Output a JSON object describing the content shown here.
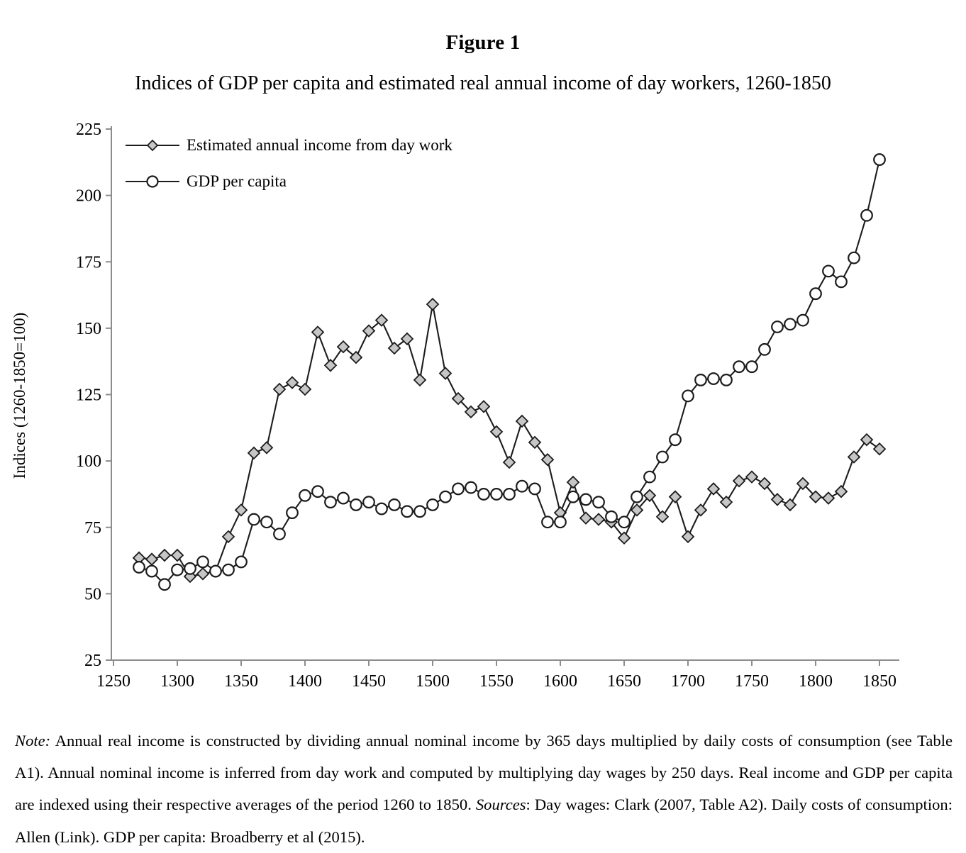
{
  "figure": {
    "title": "Figure 1",
    "subtitle": "Indices of GDP per capita and estimated real annual income of day workers, 1260-1850"
  },
  "chart_data": {
    "type": "line",
    "title": "Indices of GDP per capita and estimated real annual income of day workers, 1260-1850",
    "xlabel": "",
    "ylabel": "Indices (1260-1850=100)",
    "xlim": [
      1250,
      1867
    ],
    "ylim": [
      25,
      225
    ],
    "x_ticks": [
      1250,
      1300,
      1350,
      1400,
      1450,
      1500,
      1550,
      1600,
      1650,
      1700,
      1750,
      1800,
      1850
    ],
    "y_ticks": [
      25,
      50,
      75,
      100,
      125,
      150,
      175,
      200,
      225
    ],
    "grid": false,
    "legend_position": "top-left",
    "x": [
      1270,
      1280,
      1290,
      1300,
      1310,
      1320,
      1330,
      1340,
      1350,
      1360,
      1370,
      1380,
      1390,
      1400,
      1410,
      1420,
      1430,
      1440,
      1450,
      1460,
      1470,
      1480,
      1490,
      1500,
      1510,
      1520,
      1530,
      1540,
      1550,
      1560,
      1570,
      1580,
      1590,
      1600,
      1610,
      1620,
      1630,
      1640,
      1650,
      1660,
      1670,
      1680,
      1690,
      1700,
      1710,
      1720,
      1730,
      1740,
      1750,
      1760,
      1770,
      1780,
      1790,
      1800,
      1810,
      1820,
      1830,
      1840,
      1850
    ],
    "series": [
      {
        "name": "Estimated annual income from day work",
        "marker": "diamond",
        "values": [
          63.5,
          63,
          64.5,
          64.5,
          56.5,
          57.5,
          58.5,
          71.5,
          81.5,
          103,
          105,
          127,
          129.5,
          127,
          148.5,
          136,
          143,
          139,
          149,
          153,
          142.5,
          146,
          130.5,
          159,
          133,
          123.5,
          118.5,
          120.5,
          111,
          99.5,
          115,
          107,
          100.5,
          80.5,
          92,
          78.5,
          78,
          77,
          71,
          81.5,
          87,
          79,
          86.5,
          71.5,
          81.5,
          89.5,
          84.5,
          92.5,
          94,
          91.5,
          85.5,
          83.5,
          91.5,
          86.5,
          86,
          88.5,
          101.5,
          108,
          104.5
        ]
      },
      {
        "name": "GDP per capita",
        "marker": "circle",
        "values": [
          60,
          58.5,
          53.5,
          59,
          59.5,
          62,
          58.5,
          59,
          62,
          78,
          77,
          72.5,
          80.5,
          87,
          88.5,
          84.5,
          86,
          83.5,
          84.5,
          82,
          83.5,
          81,
          81,
          83.5,
          86.5,
          89.5,
          90,
          87.5,
          87.5,
          87.5,
          90.5,
          89.5,
          77,
          77,
          86.5,
          85.5,
          84.5,
          79,
          77,
          86.5,
          94,
          101.5,
          108,
          124.5,
          130.5,
          131,
          130.5,
          135.5,
          135.5,
          142,
          150.5,
          151.5,
          153,
          163,
          171.5,
          167.5,
          176.5,
          192.5,
          213.5
        ]
      }
    ]
  },
  "note": {
    "label": "Note:",
    "body": " Annual real income is constructed by dividing annual nominal income by 365 days multiplied by daily costs of consumption (see Table A1). Annual nominal income is inferred from day work and computed by multiplying day wages by 250 days. Real income and GDP per capita are indexed using their respective averages of the period 1260 to 1850. ",
    "sources_label": "Sources",
    "sources_body": ": Day wages: Clark (2007, Table A2). Daily costs of consumption: Allen (Link). GDP per capita: Broadberry et al (2015)."
  },
  "colors": {
    "line": "#1c1c1c",
    "axis": "#8c8c8c",
    "diamond_fill": "#c6c6c6",
    "circle_fill": "#ffffff",
    "text": "#000000"
  }
}
